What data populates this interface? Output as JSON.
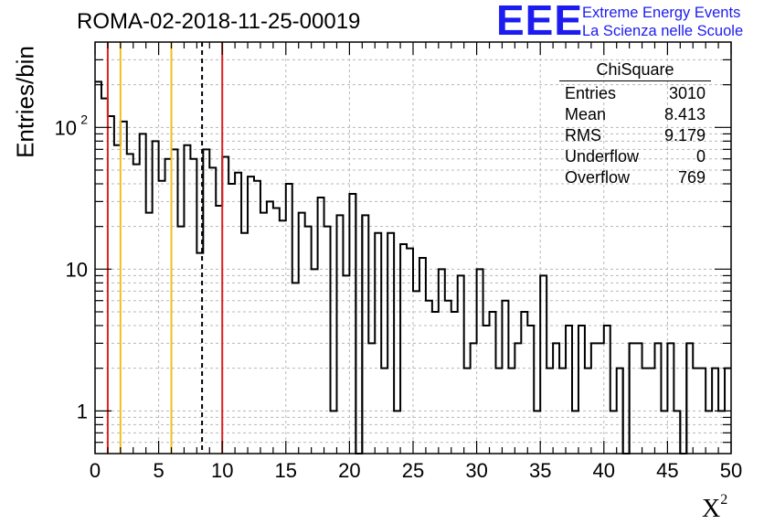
{
  "title": "ROMA-02-2018-11-25-00019",
  "logo": {
    "letters": "EEE",
    "line1": "Extreme Energy Events",
    "line2": "La Scienza nelle Scuole"
  },
  "colors": {
    "red_line": "#e02020",
    "yellow_line": "#f0c020",
    "grid": "#b8b8b8"
  },
  "chart_data": {
    "type": "histogram",
    "xlabel": "X",
    "xlabel_sup": "2",
    "ylabel": "Entries/bin",
    "xlim": [
      0,
      50
    ],
    "ylim": [
      0.5,
      400
    ],
    "yscale": "log",
    "grid": true,
    "bin_width": 0.5,
    "x_ticks": [
      0,
      5,
      10,
      15,
      20,
      25,
      30,
      35,
      40,
      45,
      50
    ],
    "y_ticks": [
      {
        "value": 1,
        "label": "1"
      },
      {
        "value": 10,
        "label": "10"
      },
      {
        "value": 100,
        "label": "10",
        "sup": "2"
      }
    ],
    "values": [
      210,
      160,
      120,
      75,
      110,
      65,
      55,
      90,
      25,
      80,
      42,
      60,
      70,
      20,
      75,
      60,
      13,
      70,
      52,
      28,
      62,
      40,
      48,
      18,
      45,
      42,
      25,
      30,
      27,
      22,
      40,
      8,
      25,
      20,
      10,
      32,
      20,
      1,
      24,
      9,
      34,
      0.5,
      24,
      3,
      18,
      2,
      18,
      1,
      15,
      14,
      7,
      12,
      6,
      5,
      10,
      6,
      5,
      9,
      2,
      3,
      10,
      4,
      5,
      2,
      6,
      2,
      3,
      5,
      4,
      1,
      9,
      2,
      3,
      2,
      4,
      1,
      4,
      2,
      3,
      3,
      4,
      1,
      2,
      0.5,
      3,
      3,
      2,
      2,
      3,
      1,
      3,
      1,
      0.5,
      3,
      2,
      2,
      1,
      2,
      1,
      2
    ],
    "vertical_lines": [
      {
        "x": 1,
        "color": "red",
        "style": "solid"
      },
      {
        "x": 2,
        "color": "yellow",
        "style": "solid"
      },
      {
        "x": 6,
        "color": "yellow",
        "style": "solid"
      },
      {
        "x": 8.413,
        "color": "black",
        "style": "dashed"
      },
      {
        "x": 10,
        "color": "red",
        "style": "solid"
      }
    ],
    "stats_box": {
      "title": "ChiSquare",
      "rows": [
        {
          "label": "Entries",
          "value": "3010"
        },
        {
          "label": "Mean",
          "value": "8.413"
        },
        {
          "label": "RMS",
          "value": "9.179"
        },
        {
          "label": "Underflow",
          "value": "0"
        },
        {
          "label": "Overflow",
          "value": "769"
        }
      ]
    }
  }
}
